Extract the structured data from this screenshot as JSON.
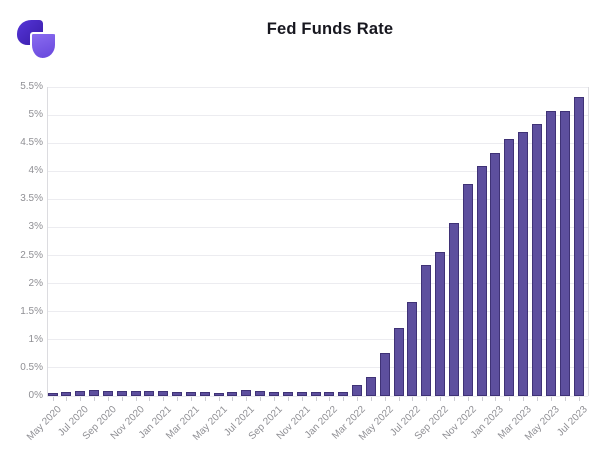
{
  "header": {
    "logo": {
      "icon": "two-petal-logo",
      "primary_color": "#4527c0",
      "secondary_color": "#7a5cec"
    }
  },
  "chart_data": {
    "type": "bar",
    "title": "Fed Funds Rate",
    "unit": "%",
    "categories": [
      "May 2020",
      "Jun 2020",
      "Jul 2020",
      "Aug 2020",
      "Sep 2020",
      "Oct 2020",
      "Nov 2020",
      "Dec 2020",
      "Jan 2021",
      "Feb 2021",
      "Mar 2021",
      "Apr 2021",
      "May 2021",
      "Jun 2021",
      "Jul 2021",
      "Aug 2021",
      "Sep 2021",
      "Oct 2021",
      "Nov 2021",
      "Dec 2021",
      "Jan 2022",
      "Feb 2022",
      "Mar 2022",
      "Apr 2022",
      "May 2022",
      "Jun 2022",
      "Jul 2022",
      "Aug 2022",
      "Sep 2022",
      "Oct 2022",
      "Nov 2022",
      "Dec 2022",
      "Jan 2023",
      "Feb 2023",
      "Mar 2023",
      "Apr 2023",
      "May 2023",
      "Jun 2023",
      "Jul 2023"
    ],
    "values": [
      0.05,
      0.08,
      0.09,
      0.1,
      0.09,
      0.09,
      0.09,
      0.09,
      0.09,
      0.08,
      0.07,
      0.07,
      0.06,
      0.08,
      0.1,
      0.09,
      0.08,
      0.08,
      0.08,
      0.08,
      0.08,
      0.08,
      0.2,
      0.33,
      0.77,
      1.21,
      1.68,
      2.33,
      2.56,
      3.08,
      3.78,
      4.1,
      4.33,
      4.57,
      4.7,
      4.85,
      5.08,
      5.08,
      5.33
    ],
    "ylim": [
      0,
      5.5
    ],
    "ytick_labels": [
      "0%",
      "0.5%",
      "1%",
      "1.5%",
      "2%",
      "2.5%",
      "3%",
      "3.5%",
      "4%",
      "4.5%",
      "5%",
      "5.5%"
    ],
    "xtick_labels": [
      "May 2020",
      "Jul 2020",
      "Sep 2020",
      "Nov 2020",
      "Jan 2021",
      "Mar 2021",
      "May 2021",
      "Jul 2021",
      "Sep 2021",
      "Nov 2021",
      "Jan 2022",
      "Mar 2022",
      "May 2022",
      "Jul 2022",
      "Sep 2022",
      "Nov 2022",
      "Jan 2023",
      "Mar 2023",
      "May 2023",
      "Jul 2023"
    ],
    "xtick_label_every": 2,
    "grid": true,
    "legend": false,
    "bar_color": "#5d4f9e",
    "bar_border_color": "#3f3276",
    "gridline_color": "#ececf0",
    "axis_line_color": "#dcdce0",
    "tick_color": "#cdcdd3",
    "label_color": "#8f8f94",
    "title_color": "#17171f"
  }
}
